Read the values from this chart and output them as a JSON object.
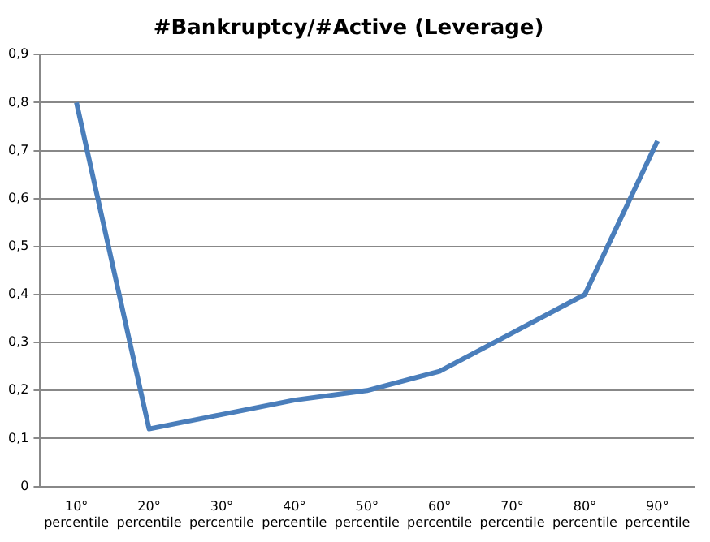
{
  "chart_data": {
    "type": "line",
    "title": "#Bankruptcy/#Active (Leverage)",
    "categories": [
      "10° percentile",
      "20° percentile",
      "30° percentile",
      "40° percentile",
      "50° percentile",
      "60° percentile",
      "70° percentile",
      "80° percentile",
      "90° percentile"
    ],
    "series": [
      {
        "color": "#4a7ebb",
        "values": [
          0.8,
          0.12,
          0.15,
          0.18,
          0.2,
          0.24,
          0.32,
          0.4,
          0.72
        ]
      }
    ],
    "ylim": [
      0,
      0.9
    ],
    "yticks": [
      0,
      {
        "value": 0.1,
        "label": "0,1"
      },
      {
        "value": 0.2,
        "label": "0,2"
      },
      {
        "value": 0.3,
        "label": "0,3"
      },
      {
        "value": 0.4,
        "label": "0,4"
      },
      {
        "value": 0.5,
        "label": "0,5"
      },
      {
        "value": 0.6,
        "label": "0,6"
      },
      {
        "value": 0.7,
        "label": "0,7"
      },
      {
        "value": 0.8,
        "label": "0,8"
      },
      {
        "value": 0.9,
        "label": "0,9"
      }
    ],
    "grid": "y",
    "marker": "none",
    "line_style": "solid",
    "legend": false
  }
}
